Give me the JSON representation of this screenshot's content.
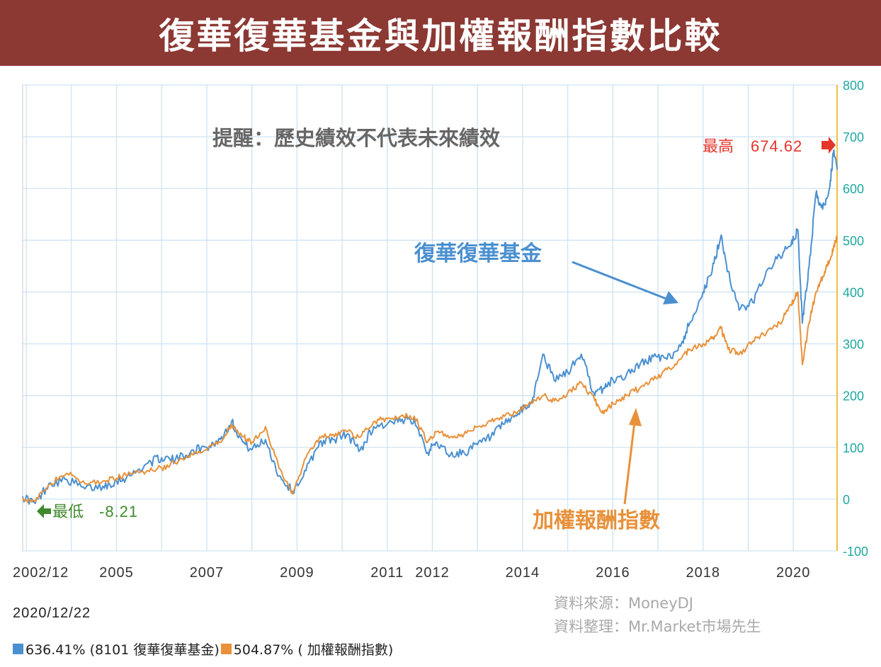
{
  "title": "復華復華基金與加權報酬指數比較",
  "reminder": "提醒：歷史績效不代表未來績效",
  "annotations": {
    "fund_label": "復華復華基金",
    "index_label": "加權報酬指數",
    "high_label": "最高",
    "high_value": "674.62",
    "low_label": "最低",
    "low_value": "-8.21"
  },
  "footer": {
    "date": "2020/12/22",
    "source": "資料來源：MoneyDJ",
    "compiled": "資料整理：Mr.Market市場先生"
  },
  "legend": [
    {
      "text": "636.41% (8101 復華復華基金)",
      "color": "#4a90d0"
    },
    {
      "text": "504.87% ( 加權報酬指數)",
      "color": "#e8913a"
    }
  ],
  "colors": {
    "title_bg": "#8c3833",
    "fund": "#4a90d0",
    "index": "#e8913a",
    "high": "#e5352b",
    "low": "#3f8a2c",
    "axis_right": "#1fa8a0"
  },
  "chart_data": {
    "type": "line",
    "title": "復華復華基金與加權報酬指數比較",
    "x_ticks": [
      "2002/12",
      "2005",
      "2007",
      "2009",
      "2011",
      "2012",
      "2014",
      "2016",
      "2018",
      "2020"
    ],
    "x_tick_years": [
      2002.92,
      2005.0,
      2007.0,
      2009.0,
      2011.0,
      2012.0,
      2014.0,
      2016.0,
      2018.0,
      2020.0
    ],
    "xlim": [
      2002.92,
      2020.97
    ],
    "ylim": [
      -100,
      800
    ],
    "y_ticks": [
      800,
      700,
      600,
      500,
      400,
      300,
      200,
      100,
      0,
      -100
    ],
    "y_axis_position": "right",
    "grid": true,
    "series": [
      {
        "name": "復華復華基金",
        "x": [
          2002.92,
          2003.2,
          2003.5,
          2003.9,
          2004.3,
          2004.7,
          2005.0,
          2005.3,
          2005.7,
          2006.0,
          2006.3,
          2006.7,
          2007.0,
          2007.3,
          2007.55,
          2007.8,
          2008.0,
          2008.3,
          2008.6,
          2008.9,
          2009.2,
          2009.5,
          2009.8,
          2010.1,
          2010.4,
          2010.7,
          2011.0,
          2011.3,
          2011.6,
          2011.9,
          2012.1,
          2012.4,
          2012.7,
          2013.0,
          2013.3,
          2013.6,
          2013.9,
          2014.2,
          2014.45,
          2014.7,
          2015.0,
          2015.3,
          2015.6,
          2015.8,
          2016.0,
          2016.3,
          2016.6,
          2016.9,
          2017.2,
          2017.5,
          2017.7,
          2018.0,
          2018.2,
          2018.4,
          2018.55,
          2018.8,
          2019.1,
          2019.4,
          2019.7,
          2019.95,
          2020.1,
          2020.2,
          2020.35,
          2020.5,
          2020.65,
          2020.8,
          2020.9,
          2020.97
        ],
        "values": [
          5,
          -8.21,
          30,
          38,
          20,
          25,
          35,
          45,
          70,
          80,
          75,
          95,
          100,
          115,
          150,
          110,
          95,
          115,
          45,
          15,
          55,
          110,
          115,
          125,
          95,
          140,
          145,
          150,
          155,
          90,
          110,
          85,
          90,
          105,
          120,
          145,
          165,
          185,
          280,
          230,
          245,
          280,
          200,
          215,
          230,
          240,
          260,
          275,
          270,
          295,
          340,
          400,
          440,
          510,
          440,
          365,
          380,
          440,
          470,
          490,
          520,
          340,
          450,
          590,
          560,
          600,
          674.62,
          636.41
        ]
      },
      {
        "name": "加權報酬指數",
        "x": [
          2002.92,
          2003.2,
          2003.5,
          2003.9,
          2004.3,
          2004.7,
          2005.0,
          2005.3,
          2005.7,
          2006.0,
          2006.3,
          2006.7,
          2007.0,
          2007.3,
          2007.55,
          2007.8,
          2008.0,
          2008.3,
          2008.6,
          2008.9,
          2009.2,
          2009.5,
          2009.8,
          2010.1,
          2010.4,
          2010.7,
          2011.0,
          2011.3,
          2011.6,
          2011.9,
          2012.1,
          2012.4,
          2012.7,
          2013.0,
          2013.3,
          2013.6,
          2013.9,
          2014.2,
          2014.45,
          2014.7,
          2015.0,
          2015.3,
          2015.6,
          2015.8,
          2016.0,
          2016.3,
          2016.6,
          2016.9,
          2017.2,
          2017.5,
          2017.7,
          2018.0,
          2018.2,
          2018.4,
          2018.55,
          2018.8,
          2019.1,
          2019.4,
          2019.7,
          2019.95,
          2020.1,
          2020.2,
          2020.35,
          2020.5,
          2020.65,
          2020.8,
          2020.9,
          2020.97
        ],
        "values": [
          3,
          -5,
          28,
          50,
          30,
          35,
          40,
          50,
          55,
          60,
          70,
          85,
          95,
          110,
          145,
          120,
          110,
          140,
          60,
          10,
          80,
          120,
          125,
          130,
          120,
          150,
          155,
          160,
          160,
          110,
          130,
          120,
          125,
          140,
          150,
          160,
          170,
          185,
          200,
          190,
          205,
          225,
          190,
          165,
          185,
          200,
          215,
          230,
          250,
          270,
          290,
          300,
          310,
          330,
          290,
          280,
          305,
          320,
          340,
          375,
          400,
          260,
          340,
          400,
          430,
          460,
          490,
          504.87
        ]
      }
    ],
    "annotations": [
      {
        "text": "最高 674.62",
        "x": 2020.9,
        "y": 674.62
      },
      {
        "text": "最低 -8.21",
        "x": 2003.2,
        "y": -8.21
      }
    ]
  }
}
